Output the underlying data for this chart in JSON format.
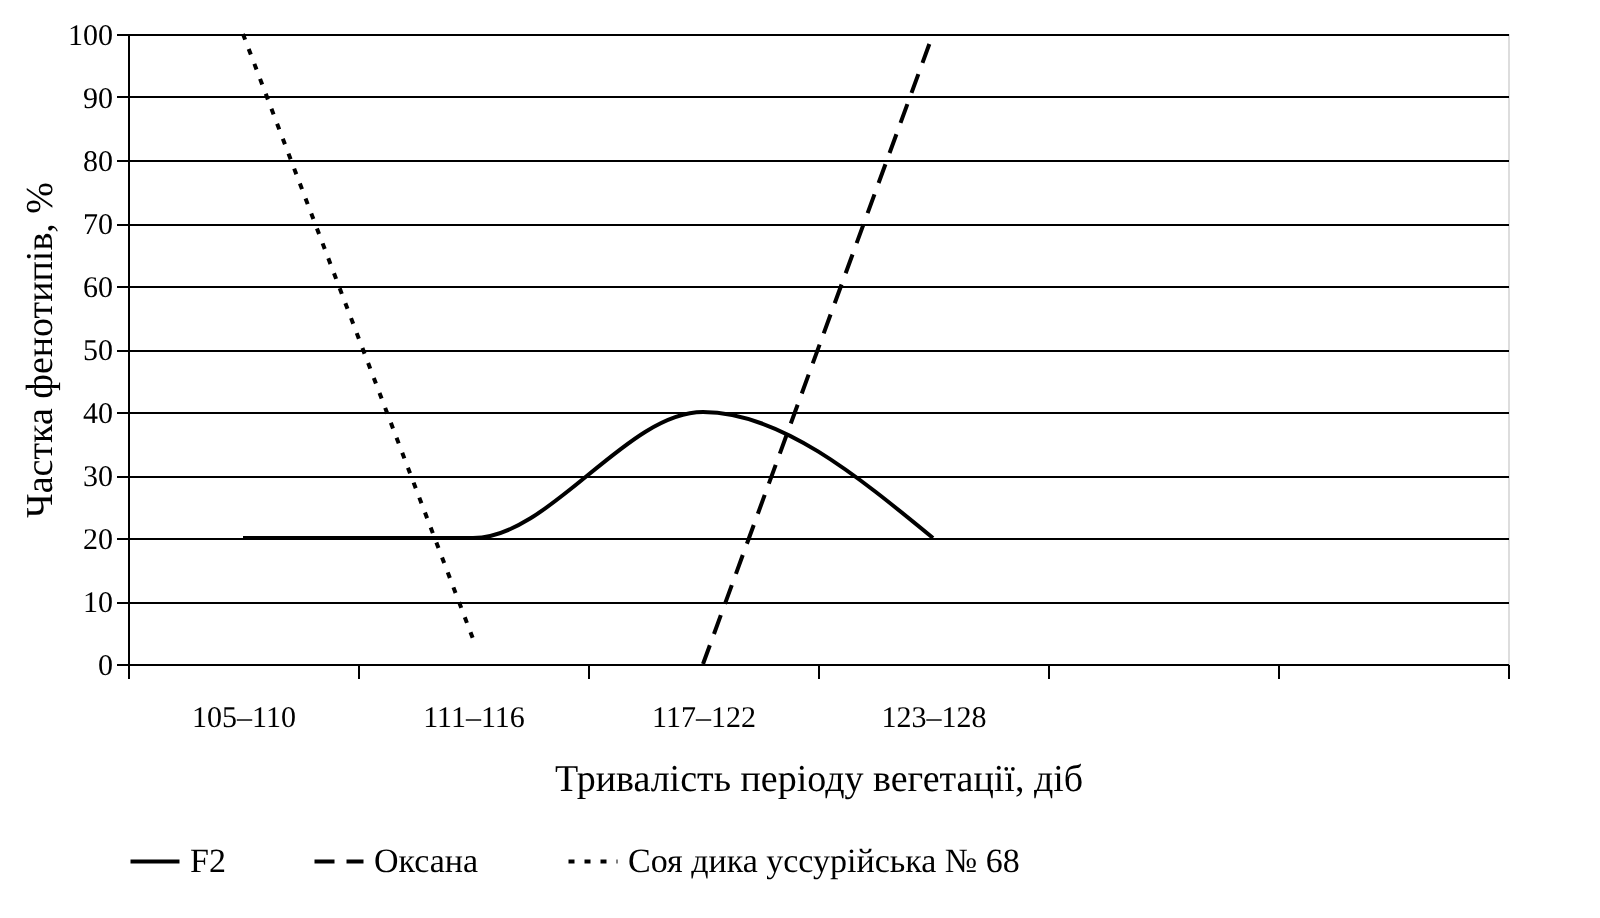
{
  "chart_data": {
    "type": "line",
    "xlabel": "Тривалість періоду вегетації, діб",
    "ylabel": "Частка фенотипів, %",
    "categories": [
      "105–110",
      "111–116",
      "117–122",
      "123–128",
      null,
      null
    ],
    "ylim": [
      0,
      100
    ],
    "yticks": [
      0,
      10,
      20,
      30,
      40,
      50,
      60,
      70,
      80,
      90,
      100
    ],
    "grid": "y",
    "legend": "bottom",
    "series": [
      {
        "name": "F2",
        "color": "#000000",
        "line_style": "solid",
        "values": [
          20,
          20,
          40,
          20,
          null,
          null
        ]
      },
      {
        "name": "Оксана",
        "color": "#000000",
        "line_style": "dashed",
        "values": [
          null,
          null,
          0,
          100,
          null,
          null
        ]
      },
      {
        "name": "Соя дика уссурійська № 68",
        "color": "#000000",
        "line_style": "dotted",
        "values": [
          100,
          4,
          null,
          null,
          null,
          null
        ]
      }
    ]
  }
}
